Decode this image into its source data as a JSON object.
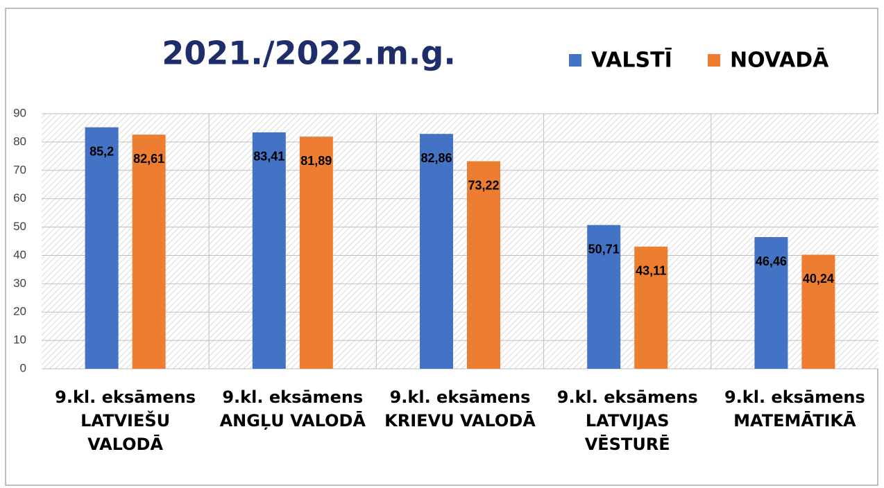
{
  "chart_data": {
    "type": "bar",
    "title": "2021./2022.m.g.",
    "categories": [
      "9.kl. eksāmens LATVIEŠU VALODĀ",
      "9.kl. eksāmens ANGĻU VALODĀ",
      "9.kl. eksāmens KRIEVU VALODĀ",
      "9.kl. eksāmens LATVIJAS VĒSTURĒ",
      "9.kl. eksāmens MATEMĀTIKĀ"
    ],
    "series": [
      {
        "name": "VALSTĪ",
        "color": "#4472c4",
        "values": [
          85.2,
          83.41,
          82.86,
          50.71,
          46.46
        ],
        "value_labels": [
          "85,2",
          "83,41",
          "82,86",
          "50,71",
          "46,46"
        ]
      },
      {
        "name": "NOVADĀ",
        "color": "#ed7d31",
        "values": [
          82.61,
          81.89,
          73.22,
          43.11,
          40.24
        ],
        "value_labels": [
          "82,61",
          "81,89",
          "73,22",
          "43,11",
          "40,24"
        ]
      }
    ],
    "ylim": [
      0,
      90
    ],
    "yticks": [
      0,
      10,
      20,
      30,
      40,
      50,
      60,
      70,
      80,
      90
    ],
    "grid": true,
    "legend": "top-right"
  }
}
